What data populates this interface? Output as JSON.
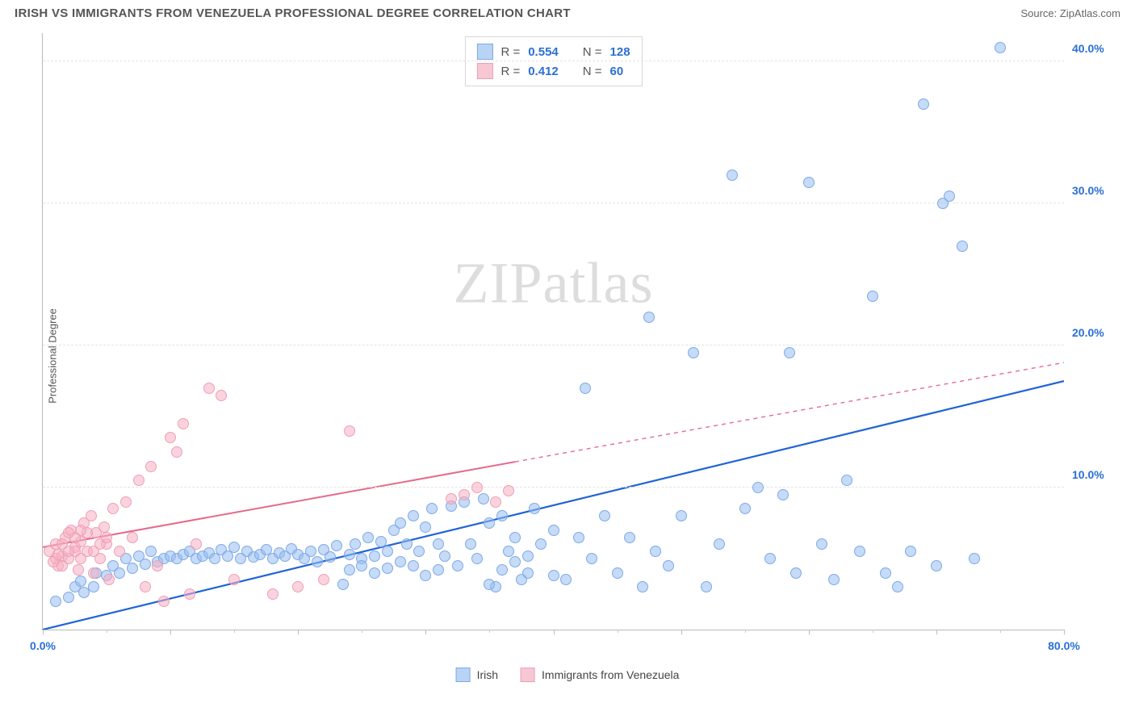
{
  "header": {
    "title": "IRISH VS IMMIGRANTS FROM VENEZUELA PROFESSIONAL DEGREE CORRELATION CHART",
    "source_prefix": "Source: ",
    "source_name": "ZipAtlas.com"
  },
  "chart": {
    "type": "scatter",
    "ylabel": "Professional Degree",
    "xlim": [
      0,
      80
    ],
    "ylim": [
      0,
      42
    ],
    "xtick_labels": [
      {
        "pos": 0,
        "label": "0.0%"
      },
      {
        "pos": 80,
        "label": "80.0%"
      }
    ],
    "xtick_major_step": 10,
    "xtick_minor_step": 5,
    "ytick_labels": [
      {
        "pos": 10,
        "label": "10.0%"
      },
      {
        "pos": 20,
        "label": "20.0%"
      },
      {
        "pos": 30,
        "label": "30.0%"
      },
      {
        "pos": 40,
        "label": "40.0%"
      }
    ],
    "xtick_label_color": "#2a6fd6",
    "ytick_label_color": "#2a6fd6",
    "background_color": "#ffffff",
    "grid_color": "#e3e3e3",
    "watermark": "ZIPatlas",
    "correlation_box": {
      "rows": [
        {
          "color_fill": "#b9d3f5",
          "color_border": "#7fa9e8",
          "r_label": "R =",
          "r": "0.554",
          "n_label": "N =",
          "n": "128"
        },
        {
          "color_fill": "#f7c7d4",
          "color_border": "#eea0b4",
          "r_label": "R =",
          "r": "0.412",
          "n_label": "N =",
          "n": "60"
        }
      ],
      "value_color": "#2a6fd6"
    },
    "bottom_legend": [
      {
        "label": "Irish",
        "fill": "#b9d3f5",
        "border": "#7fa9e8"
      },
      {
        "label": "Immigrants from Venezuela",
        "fill": "#f7c7d4",
        "border": "#eea0b4"
      }
    ],
    "series": [
      {
        "name": "Irish",
        "marker_fill": "rgba(150,190,240,0.55)",
        "marker_border": "#7fa9e8",
        "marker_size": 14,
        "trend": {
          "x1": 0,
          "y1": 0.0,
          "x2": 80,
          "y2": 17.5,
          "color": "#1f63d6",
          "width": 2.2,
          "dash_after_x": null
        },
        "points": [
          [
            1,
            2.0
          ],
          [
            2,
            2.3
          ],
          [
            2.5,
            3.0
          ],
          [
            3,
            3.4
          ],
          [
            3.2,
            2.6
          ],
          [
            4,
            3.0
          ],
          [
            4.2,
            4.0
          ],
          [
            5,
            3.8
          ],
          [
            5.5,
            4.5
          ],
          [
            6,
            4.0
          ],
          [
            6.5,
            5.0
          ],
          [
            7,
            4.3
          ],
          [
            7.5,
            5.2
          ],
          [
            8,
            4.6
          ],
          [
            8.5,
            5.5
          ],
          [
            9,
            4.8
          ],
          [
            9.5,
            5.0
          ],
          [
            10,
            5.2
          ],
          [
            10.5,
            5.0
          ],
          [
            11,
            5.3
          ],
          [
            11.5,
            5.5
          ],
          [
            12,
            5.0
          ],
          [
            12.5,
            5.2
          ],
          [
            13,
            5.4
          ],
          [
            13.5,
            5.0
          ],
          [
            14,
            5.6
          ],
          [
            14.5,
            5.2
          ],
          [
            15,
            5.8
          ],
          [
            15.5,
            5.0
          ],
          [
            16,
            5.5
          ],
          [
            16.5,
            5.1
          ],
          [
            17,
            5.3
          ],
          [
            17.5,
            5.6
          ],
          [
            18,
            5.0
          ],
          [
            18.5,
            5.4
          ],
          [
            19,
            5.2
          ],
          [
            19.5,
            5.7
          ],
          [
            20,
            5.3
          ],
          [
            20.5,
            5.0
          ],
          [
            21,
            5.5
          ],
          [
            21.5,
            4.8
          ],
          [
            22,
            5.6
          ],
          [
            22.5,
            5.1
          ],
          [
            23,
            5.9
          ],
          [
            23.5,
            3.2
          ],
          [
            24,
            5.3
          ],
          [
            24.5,
            6.0
          ],
          [
            25,
            5.0
          ],
          [
            25.5,
            6.5
          ],
          [
            26,
            5.2
          ],
          [
            26.5,
            6.2
          ],
          [
            27,
            5.5
          ],
          [
            27.5,
            7.0
          ],
          [
            28,
            7.5
          ],
          [
            28.5,
            6.0
          ],
          [
            29,
            8.0
          ],
          [
            29.5,
            5.5
          ],
          [
            30,
            7.2
          ],
          [
            30.5,
            8.5
          ],
          [
            31,
            6.0
          ],
          [
            31.5,
            5.2
          ],
          [
            32,
            8.7
          ],
          [
            32.5,
            4.5
          ],
          [
            33,
            9.0
          ],
          [
            33.5,
            6.0
          ],
          [
            34,
            5.0
          ],
          [
            34.5,
            9.2
          ],
          [
            35,
            7.5
          ],
          [
            35.5,
            3.0
          ],
          [
            36,
            8.0
          ],
          [
            36.5,
            5.5
          ],
          [
            37,
            6.5
          ],
          [
            37.5,
            3.5
          ],
          [
            38,
            4.0
          ],
          [
            38.5,
            8.5
          ],
          [
            39,
            6.0
          ],
          [
            40,
            7.0
          ],
          [
            41,
            3.5
          ],
          [
            42,
            6.5
          ],
          [
            42.5,
            17.0
          ],
          [
            43,
            5.0
          ],
          [
            44,
            8.0
          ],
          [
            45,
            4.0
          ],
          [
            46,
            6.5
          ],
          [
            47,
            3.0
          ],
          [
            47.5,
            22.0
          ],
          [
            48,
            5.5
          ],
          [
            49,
            4.5
          ],
          [
            50,
            8.0
          ],
          [
            51,
            19.5
          ],
          [
            52,
            3.0
          ],
          [
            53,
            6.0
          ],
          [
            54,
            32.0
          ],
          [
            55,
            8.5
          ],
          [
            56,
            10.0
          ],
          [
            57,
            5.0
          ],
          [
            58,
            9.5
          ],
          [
            58.5,
            19.5
          ],
          [
            59,
            4.0
          ],
          [
            60,
            31.5
          ],
          [
            61,
            6.0
          ],
          [
            62,
            3.5
          ],
          [
            63,
            10.5
          ],
          [
            64,
            5.5
          ],
          [
            65,
            23.5
          ],
          [
            66,
            4.0
          ],
          [
            67,
            3.0
          ],
          [
            68,
            5.5
          ],
          [
            69,
            37.0
          ],
          [
            70,
            4.5
          ],
          [
            70.5,
            30.0
          ],
          [
            71,
            30.5
          ],
          [
            72,
            27.0
          ],
          [
            73,
            5.0
          ],
          [
            75,
            41.0
          ],
          [
            35,
            3.2
          ],
          [
            36,
            4.2
          ],
          [
            37,
            4.8
          ],
          [
            38,
            5.2
          ],
          [
            40,
            3.8
          ],
          [
            29,
            4.5
          ],
          [
            30,
            3.8
          ],
          [
            31,
            4.2
          ],
          [
            26,
            4.0
          ],
          [
            27,
            4.3
          ],
          [
            28,
            4.8
          ],
          [
            24,
            4.2
          ],
          [
            25,
            4.5
          ]
        ]
      },
      {
        "name": "Immigrants from Venezuela",
        "marker_fill": "rgba(245,175,195,0.55)",
        "marker_border": "#eea0b4",
        "marker_size": 14,
        "trend": {
          "x1": 0,
          "y1": 5.8,
          "x2": 80,
          "y2": 18.8,
          "color": "#e66a8a",
          "width": 2,
          "dash_after_x": 37
        },
        "points": [
          [
            0.5,
            5.5
          ],
          [
            1,
            6.0
          ],
          [
            1.2,
            4.5
          ],
          [
            1.5,
            5.2
          ],
          [
            1.8,
            6.5
          ],
          [
            2,
            5.0
          ],
          [
            2.2,
            7.0
          ],
          [
            2.5,
            5.8
          ],
          [
            2.8,
            4.2
          ],
          [
            3,
            6.2
          ],
          [
            3.2,
            7.5
          ],
          [
            3.5,
            5.5
          ],
          [
            3.8,
            8.0
          ],
          [
            4,
            4.0
          ],
          [
            4.2,
            6.8
          ],
          [
            4.5,
            5.0
          ],
          [
            4.8,
            7.2
          ],
          [
            5,
            6.0
          ],
          [
            5.2,
            3.5
          ],
          [
            5.5,
            8.5
          ],
          [
            6,
            5.5
          ],
          [
            6.5,
            9.0
          ],
          [
            7,
            6.5
          ],
          [
            7.5,
            10.5
          ],
          [
            8,
            3.0
          ],
          [
            8.5,
            11.5
          ],
          [
            9,
            4.5
          ],
          [
            9.5,
            2.0
          ],
          [
            10,
            13.5
          ],
          [
            10.5,
            12.5
          ],
          [
            11,
            14.5
          ],
          [
            11.5,
            2.5
          ],
          [
            12,
            6.0
          ],
          [
            13,
            17.0
          ],
          [
            14,
            16.5
          ],
          [
            15,
            3.5
          ],
          [
            18,
            2.5
          ],
          [
            20,
            3.0
          ],
          [
            22,
            3.5
          ],
          [
            24,
            14.0
          ],
          [
            2.5,
            6.5
          ],
          [
            3,
            5.0
          ],
          [
            3.5,
            6.8
          ],
          [
            4,
            5.5
          ],
          [
            4.5,
            6.0
          ],
          [
            5,
            6.5
          ],
          [
            1.5,
            6.0
          ],
          [
            2,
            6.8
          ],
          [
            2.5,
            5.5
          ],
          [
            3,
            7.0
          ],
          [
            1,
            5.0
          ],
          [
            1.5,
            4.5
          ],
          [
            2,
            5.5
          ],
          [
            0.8,
            4.8
          ],
          [
            1.2,
            5.3
          ],
          [
            32,
            9.2
          ],
          [
            33,
            9.5
          ],
          [
            34,
            10.0
          ],
          [
            35.5,
            9.0
          ],
          [
            36.5,
            9.8
          ]
        ]
      }
    ]
  }
}
